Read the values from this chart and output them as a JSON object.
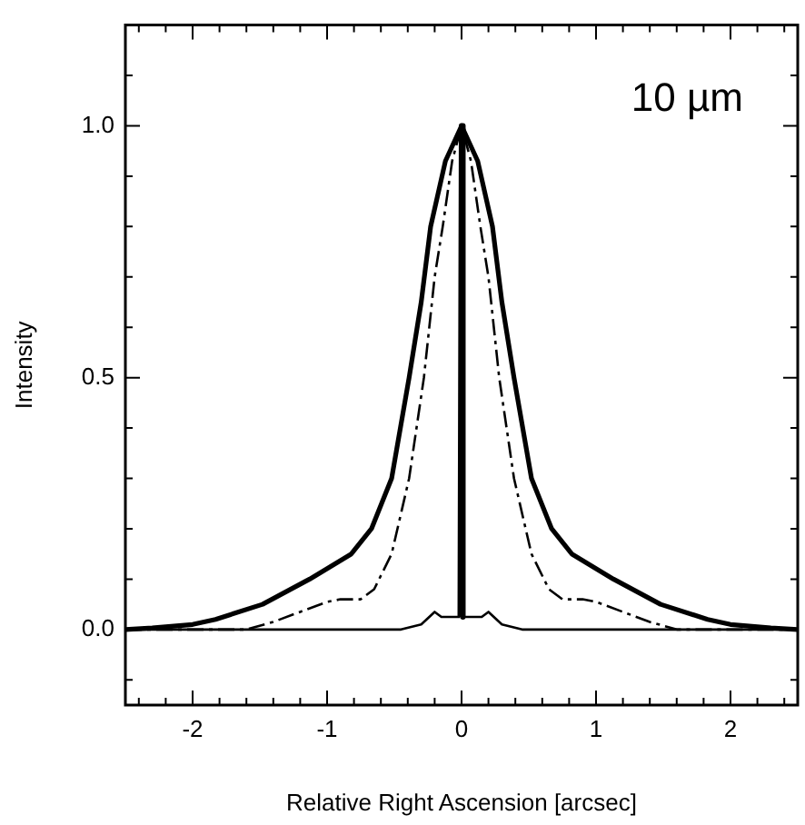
{
  "chart_data": {
    "type": "line",
    "xlabel": "Relative Right Ascension [arcsec]",
    "ylabel": "Intensity",
    "annotations": [
      "10 µm"
    ],
    "xlim": [
      -2.5,
      2.5
    ],
    "ylim": [
      -0.15,
      1.2
    ],
    "xticks": [
      -2,
      {
        "value": -1.8,
        "label": null
      },
      {
        "value": -1.6,
        "label": null
      },
      {
        "value": -1.4,
        "label": null
      },
      {
        "value": -1.2,
        "label": null
      },
      -1,
      {
        "value": -0.8,
        "label": null
      },
      {
        "value": -0.6,
        "label": null
      },
      {
        "value": -0.4,
        "label": null
      },
      {
        "value": -0.2,
        "label": null
      },
      0,
      {
        "value": 0.2,
        "label": null
      },
      {
        "value": 0.4,
        "label": null
      },
      {
        "value": 0.6,
        "label": null
      },
      {
        "value": 0.8,
        "label": null
      },
      1,
      {
        "value": 1.2,
        "label": null
      },
      {
        "value": 1.4,
        "label": null
      },
      {
        "value": 1.6,
        "label": null
      },
      {
        "value": 1.8,
        "label": null
      },
      2,
      {
        "value": -2.4,
        "label": null
      },
      {
        "value": -2.2,
        "label": null
      },
      {
        "value": 2.2,
        "label": null
      },
      {
        "value": 2.4,
        "label": null
      }
    ],
    "yticks": [
      {
        "value": -0.1,
        "label": null
      },
      {
        "value": 0,
        "label": "0.0"
      },
      {
        "value": 0.1,
        "label": null
      },
      {
        "value": 0.2,
        "label": null
      },
      {
        "value": 0.3,
        "label": null
      },
      {
        "value": 0.4,
        "label": null
      },
      0.5,
      {
        "value": 0.6,
        "label": null
      },
      {
        "value": 0.7,
        "label": null
      },
      {
        "value": 0.8,
        "label": null
      },
      {
        "value": 0.9,
        "label": null
      },
      {
        "value": 1,
        "label": "1.0"
      },
      {
        "value": 1.1,
        "label": null
      }
    ],
    "grid": false,
    "legend": false,
    "marker": "none",
    "series": [
      {
        "color": "#000000",
        "line_style": "solid",
        "x": [
          -2.5,
          -2.3,
          -2.0,
          -1.83,
          -1.48,
          -1.13,
          -0.82,
          -0.67,
          -0.52,
          -0.39,
          -0.3,
          -0.23,
          -0.12,
          0,
          0.12,
          0.23,
          0.3,
          0.39,
          0.52,
          0.67,
          0.82,
          1.13,
          1.48,
          1.83,
          2.0,
          2.3,
          2.5
        ],
        "values": [
          0,
          0.003,
          0.01,
          0.02,
          0.05,
          0.1,
          0.15,
          0.2,
          0.3,
          0.5,
          0.65,
          0.8,
          0.93,
          1.0,
          0.93,
          0.8,
          0.65,
          0.5,
          0.3,
          0.2,
          0.15,
          0.1,
          0.05,
          0.02,
          0.01,
          0.003,
          0
        ]
      },
      {
        "color": "#000000",
        "line_style": "dashed",
        "x": [
          -2.5,
          -1.6,
          -1.4,
          -1.2,
          -1.0,
          -0.9,
          -0.75,
          -0.65,
          -0.52,
          -0.39,
          -0.28,
          -0.2,
          -0.14,
          -0.07,
          0,
          0.07,
          0.14,
          0.2,
          0.28,
          0.39,
          0.52,
          0.65,
          0.75,
          0.9,
          1.0,
          1.2,
          1.4,
          1.6,
          2.5
        ],
        "values": [
          0,
          0,
          0.015,
          0.035,
          0.055,
          0.06,
          0.06,
          0.08,
          0.15,
          0.3,
          0.5,
          0.7,
          0.8,
          0.93,
          1.0,
          0.93,
          0.8,
          0.7,
          0.5,
          0.3,
          0.15,
          0.08,
          0.06,
          0.06,
          0.055,
          0.035,
          0.015,
          0,
          0
        ]
      },
      {
        "color": "#000000",
        "line_style": "solid",
        "x": [
          -2.5,
          -0.45,
          -0.3,
          -0.2,
          -0.15,
          -0.01,
          0,
          0.01,
          0.15,
          0.2,
          0.3,
          0.45,
          2.5
        ],
        "values": [
          0,
          0,
          0.01,
          0.035,
          0.025,
          0.025,
          1.0,
          0.025,
          0.025,
          0.035,
          0.01,
          0,
          0
        ]
      }
    ]
  }
}
